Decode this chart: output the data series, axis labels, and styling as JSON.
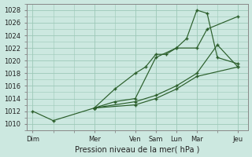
{
  "xlabel": "Pression niveau de la mer( hPa )",
  "bg_color": "#cce8e0",
  "grid_color": "#9dc8b8",
  "line_color": "#2a5e2a",
  "ylim": [
    1009,
    1029
  ],
  "yticks": [
    1010,
    1012,
    1014,
    1016,
    1018,
    1020,
    1022,
    1024,
    1026,
    1028
  ],
  "xtick_labels": [
    "Dim",
    "Mer",
    "Ven",
    "Sam",
    "Lun",
    "Mar",
    "Jeu"
  ],
  "xtick_positions": [
    0,
    3,
    5,
    6,
    7,
    8,
    10
  ],
  "xlim": [
    -0.3,
    10.5
  ],
  "line1": {
    "x": [
      0,
      1,
      3,
      4,
      5,
      5.5,
      6,
      6.5,
      7,
      7.5,
      8,
      8.5,
      9,
      10
    ],
    "y": [
      1012,
      1010.5,
      1012.5,
      1015.5,
      1018,
      1019,
      1021,
      1021,
      1022,
      1023.5,
      1028,
      1027.5,
      1020.5,
      1019.5
    ]
  },
  "line2": {
    "x": [
      3,
      4,
      5,
      6,
      7,
      8,
      8.5,
      10
    ],
    "y": [
      1012.5,
      1013.5,
      1014,
      1020.5,
      1022,
      1022,
      1025,
      1027
    ]
  },
  "line3": {
    "x": [
      3,
      5,
      6,
      7,
      8,
      9,
      10
    ],
    "y": [
      1012.5,
      1013.5,
      1014.5,
      1016,
      1018,
      1022.5,
      1019
    ]
  },
  "line4": {
    "x": [
      3,
      5,
      6,
      7,
      8,
      10
    ],
    "y": [
      1012.5,
      1013.0,
      1014.0,
      1015.5,
      1017.5,
      1019
    ]
  }
}
